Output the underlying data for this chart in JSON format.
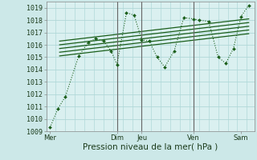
{
  "background_color": "#cce8e8",
  "plot_bg_color": "#daf0f0",
  "grid_color": "#b0d8d8",
  "line_color": "#1a5e1a",
  "vline_color": "#666666",
  "ylim": [
    1009,
    1019.5
  ],
  "yticks": [
    1009,
    1010,
    1011,
    1012,
    1013,
    1014,
    1015,
    1016,
    1017,
    1018,
    1019
  ],
  "xlabel": "Pression niveau de la mer( hPa )",
  "xlabel_fontsize": 7.5,
  "tick_fontsize": 6.0,
  "xtick_labels": [
    "Mer",
    "Dim",
    "Jeu",
    "Ven",
    "Sam"
  ],
  "xtick_positions": [
    0.0,
    3.5,
    4.8,
    7.5,
    10.0
  ],
  "main_line": {
    "x": [
      0.0,
      0.4,
      0.8,
      1.5,
      2.0,
      2.4,
      2.8,
      3.2,
      3.5,
      4.0,
      4.4,
      4.8,
      5.2,
      5.6,
      6.0,
      6.5,
      7.0,
      7.5,
      7.8,
      8.3,
      8.8,
      9.2,
      9.6,
      10.0,
      10.4
    ],
    "y": [
      1009.3,
      1010.8,
      1011.8,
      1015.1,
      1016.2,
      1016.5,
      1016.3,
      1015.5,
      1014.4,
      1018.6,
      1018.4,
      1016.4,
      1016.3,
      1015.0,
      1014.2,
      1015.5,
      1018.2,
      1018.1,
      1018.0,
      1017.9,
      1015.0,
      1014.5,
      1015.7,
      1018.3,
      1019.2
    ]
  },
  "trend_lines": [
    {
      "x": [
        0.5,
        10.4
      ],
      "y": [
        1015.1,
        1016.9
      ]
    },
    {
      "x": [
        0.5,
        10.4
      ],
      "y": [
        1015.4,
        1017.2
      ]
    },
    {
      "x": [
        0.5,
        10.4
      ],
      "y": [
        1015.7,
        1017.5
      ]
    },
    {
      "x": [
        0.5,
        10.4
      ],
      "y": [
        1016.0,
        1017.8
      ]
    },
    {
      "x": [
        0.5,
        10.4
      ],
      "y": [
        1016.3,
        1018.1
      ]
    }
  ],
  "vlines_x": [
    3.5,
    4.8,
    7.5
  ],
  "xlim": [
    -0.2,
    10.7
  ],
  "figsize": [
    3.2,
    2.0
  ],
  "dpi": 100
}
